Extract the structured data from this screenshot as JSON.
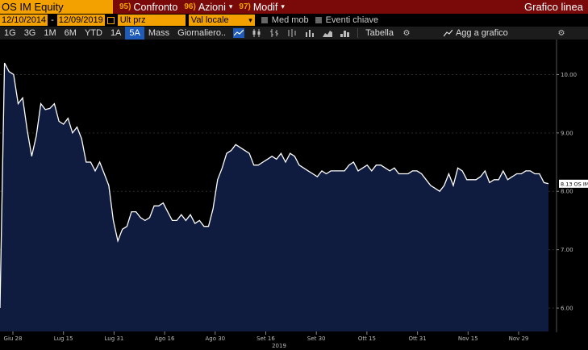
{
  "topbar": {
    "ticker": "OS IM Equity",
    "menu": [
      {
        "num": "95)",
        "label": "Confronto",
        "caret": false
      },
      {
        "num": "96)",
        "label": "Azioni",
        "caret": true
      },
      {
        "num": "97)",
        "label": "Modif",
        "caret": true
      }
    ],
    "title": "Grafico linea"
  },
  "controls": {
    "start_date": "12/10/2014",
    "end_date": "12/09/2019",
    "field": "Ult prz",
    "currency": "Val locale",
    "toggle_moving_avg": "Med mob",
    "toggle_key_events": "Eventi chiave"
  },
  "toolbar": {
    "ranges": [
      "1G",
      "3G",
      "1M",
      "6M",
      "YTD",
      "1A",
      "5A",
      "Mass"
    ],
    "active_range": "5A",
    "period": "Giornaliero",
    "table": "Tabella",
    "add_to_chart": "Agg a grafico"
  },
  "chart_data": {
    "type": "area",
    "series": [
      {
        "values": [
          6.0,
          10.2,
          10.05,
          10.0,
          9.5,
          9.6,
          9.05,
          8.6,
          8.95,
          9.5,
          9.4,
          9.42,
          9.5,
          9.2,
          9.15,
          9.25,
          9.0,
          9.1,
          8.9,
          8.5,
          8.5,
          8.35,
          8.5,
          8.3,
          8.1,
          7.5,
          7.15,
          7.35,
          7.4,
          7.65,
          7.65,
          7.55,
          7.5,
          7.55,
          7.75,
          7.75,
          7.8,
          7.65,
          7.5,
          7.5,
          7.6,
          7.5,
          7.6,
          7.45,
          7.5,
          7.4,
          7.4,
          7.7,
          8.2,
          8.4,
          8.65,
          8.7,
          8.8,
          8.75,
          8.7,
          8.65,
          8.45,
          8.45,
          8.5,
          8.55,
          8.6,
          8.55,
          8.65,
          8.5,
          8.65,
          8.6,
          8.45,
          8.4,
          8.35,
          8.3,
          8.25,
          8.35,
          8.3,
          8.35,
          8.35,
          8.35,
          8.35,
          8.45,
          8.5,
          8.35,
          8.4,
          8.45,
          8.35,
          8.45,
          8.45,
          8.4,
          8.35,
          8.4,
          8.3,
          8.3,
          8.3,
          8.35,
          8.35,
          8.3,
          8.2,
          8.1,
          8.05,
          8.0,
          8.1,
          8.3,
          8.1,
          8.4,
          8.35,
          8.2,
          8.2,
          8.2,
          8.25,
          8.35,
          8.15,
          8.2,
          8.2,
          8.35,
          8.2,
          8.25,
          8.3,
          8.3,
          8.35,
          8.35,
          8.3,
          8.3,
          8.15,
          8.13
        ]
      }
    ],
    "x_ticks": [
      "Giu 28",
      "Lug 15",
      "Lug 31",
      "Ago 16",
      "Ago 30",
      "Set 16",
      "Set 30",
      "Ott 15",
      "Ott 31",
      "Nov 15",
      "Nov 29"
    ],
    "x_year": "2019",
    "y_ticks": [
      "10.00",
      "9.00",
      "8.00",
      "7.00",
      "6.00"
    ],
    "ylim": [
      5.6,
      10.6
    ],
    "last_label": "8.13 OS IM",
    "colors": {
      "line": "#ffffff",
      "fill": "#0f1c40",
      "grid": "#2a2a2a"
    }
  }
}
